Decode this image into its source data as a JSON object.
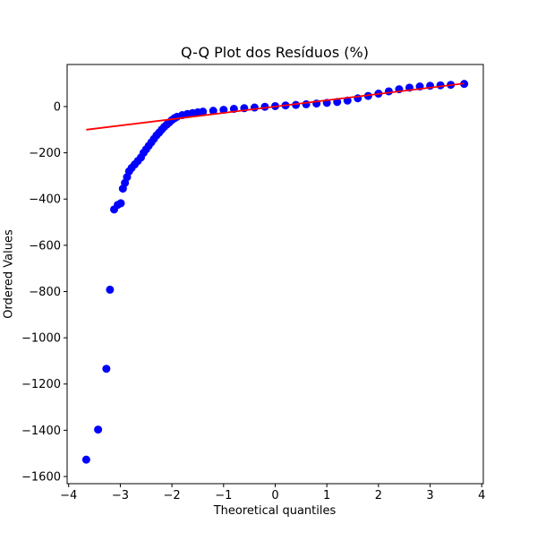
{
  "chart_data": {
    "type": "scatter",
    "title": "Q-Q Plot dos Resíduos (%)",
    "x_label": "Theoretical quantiles",
    "y_label": "Ordered Values",
    "xlim": [
      -4.03,
      4.03
    ],
    "ylim": [
      -1631,
      182
    ],
    "xticks": [
      {
        "value": -4,
        "label": "−4"
      },
      {
        "value": -3,
        "label": "−3"
      },
      {
        "value": -2,
        "label": "−2"
      },
      {
        "value": -1,
        "label": "−1"
      },
      0,
      1,
      2,
      3,
      4
    ],
    "yticks": [
      {
        "value": -1600,
        "label": "−1600"
      },
      {
        "value": -1400,
        "label": "−1400"
      },
      {
        "value": -1200,
        "label": "−1200"
      },
      {
        "value": -1000,
        "label": "−1000"
      },
      {
        "value": -800,
        "label": "−800"
      },
      {
        "value": -600,
        "label": "−600"
      },
      {
        "value": -400,
        "label": "−400"
      },
      {
        "value": -200,
        "label": "−200"
      },
      0
    ],
    "series": [
      {
        "kind": "scatter",
        "color": "#0000ff",
        "x": [
          -3.66,
          -3.43,
          -3.27,
          -3.2,
          -3.12,
          -3.05,
          -2.99,
          -2.95,
          -2.91,
          -2.87,
          -2.83,
          -2.78,
          -2.72,
          -2.66,
          -2.6,
          -2.55,
          -2.5,
          -2.45,
          -2.4,
          -2.35,
          -2.3,
          -2.25,
          -2.2,
          -2.15,
          -2.1,
          -2.05,
          -2.0,
          -1.95,
          -1.9,
          -1.8,
          -1.7,
          -1.6,
          -1.5,
          -1.4,
          -1.2,
          -1.0,
          -0.8,
          -0.6,
          -0.4,
          -0.2,
          0,
          0.2,
          0.4,
          0.6,
          0.8,
          1.0,
          1.2,
          1.4,
          1.6,
          1.8,
          2.0,
          2.2,
          2.4,
          2.6,
          2.8,
          3.0,
          3.2,
          3.4,
          3.66
        ],
        "values": [
          -1527,
          -1397,
          -1134,
          -792,
          -445,
          -425,
          -418,
          -355,
          -330,
          -305,
          -280,
          -265,
          -250,
          -235,
          -220,
          -200,
          -185,
          -170,
          -155,
          -140,
          -125,
          -113,
          -100,
          -88,
          -78,
          -68,
          -58,
          -50,
          -44,
          -37,
          -32,
          -28,
          -25,
          -22,
          -18,
          -14,
          -10,
          -7,
          -4,
          -1,
          2,
          5,
          7,
          10,
          13,
          16,
          20,
          26,
          36,
          46,
          56,
          66,
          75,
          82,
          87,
          90,
          92,
          94,
          98
        ]
      },
      {
        "kind": "line",
        "color": "#ff0000",
        "x": [
          -3.66,
          3.66
        ],
        "values": [
          -100,
          100
        ]
      }
    ]
  }
}
